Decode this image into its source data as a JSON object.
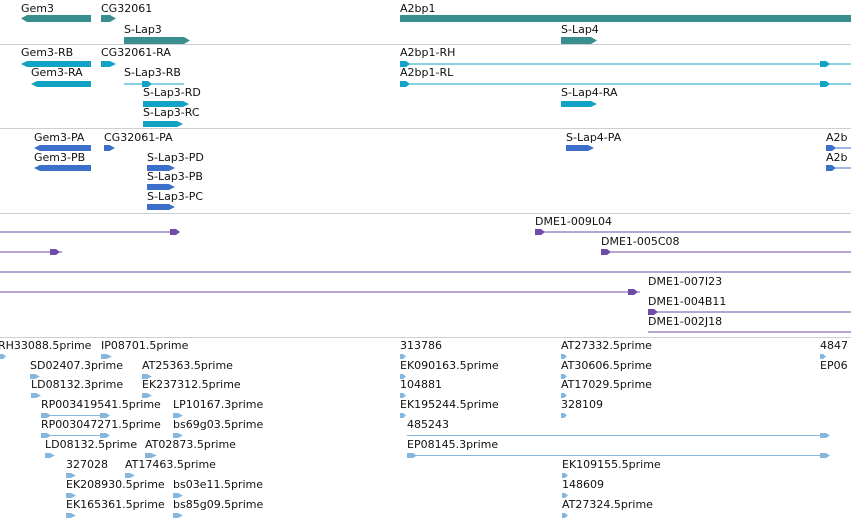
{
  "colors": {
    "gene": "#3b8e8e",
    "transcript": "#12a3c4",
    "protein": "#3b6fc9",
    "clone": "#6e4da8",
    "est": "#86b6dc",
    "divider": "#cfcfcf"
  },
  "tracks": {
    "genes": {
      "labels": {
        "gem3": "Gem3",
        "cg32061": "CG32061",
        "slap3": "S-Lap3",
        "a2bp1": "A2bp1",
        "slap4": "S-Lap4"
      }
    },
    "transcripts": {
      "labels": {
        "gem3_rb": "Gem3-RB",
        "gem3_ra": "Gem3-RA",
        "cg32061_ra": "CG32061-RA",
        "slap3_rb": "S-Lap3-RB",
        "slap3_rd": "S-Lap3-RD",
        "slap3_rc": "S-Lap3-RC",
        "a2bp1_rh": "A2bp1-RH",
        "a2bp1_rl": "A2bp1-RL",
        "slap4_ra": "S-Lap4-RA"
      }
    },
    "proteins": {
      "labels": {
        "gem3_pa": "Gem3-PA",
        "gem3_pb": "Gem3-PB",
        "cg32061_pa": "CG32061-PA",
        "slap3_pd": "S-Lap3-PD",
        "slap3_pb": "S-Lap3-PB",
        "slap3_pc": "S-Lap3-PC",
        "slap4_pa": "S-Lap4-PA",
        "a2b_1": "A2b",
        "a2b_2": "A2b"
      }
    },
    "clones": {
      "labels": {
        "dme1_009l04": "DME1-009L04",
        "dme1_005c08": "DME1-005C08",
        "dme1_007i23": "DME1-007I23",
        "dme1_004b11": "DME1-004B11",
        "dme1_002j18": "DME1-002J18"
      }
    },
    "ests": {
      "labels": {
        "rh33088": "RH33088.5prime",
        "ip08701": "IP08701.5prime",
        "sd02407": "SD02407.3prime",
        "at25363": "AT25363.5prime",
        "ld08132_3": "LD08132.3prime",
        "ek237312": "EK237312.5prime",
        "rp003419541": "RP003419541.5prime",
        "lp10167": "LP10167.3prime",
        "rp003047271": "RP003047271.5prime",
        "bs69g03": "bs69g03.5prime",
        "ld08132_5": "LD08132.5prime",
        "at02873": "AT02873.5prime",
        "n327028": "327028",
        "at17463": "AT17463.5prime",
        "ek208930": "EK208930.5prime",
        "bs03e11": "bs03e11.5prime",
        "ek165361": "EK165361.5prime",
        "bs85g09": "bs85g09.5prime",
        "n313786": "313786",
        "ek090163": "EK090163.5prime",
        "n104881": "104881",
        "ek195244": "EK195244.5prime",
        "n485243": "485243",
        "ep08145": "EP08145.3prime",
        "at27332": "AT27332.5prime",
        "at30606": "AT30606.5prime",
        "at17029": "AT17029.5prime",
        "n328109": "328109",
        "ek109155": "EK109155.5prime",
        "n148609": "148609",
        "at27324": "AT27324.5prime",
        "n4847": "4847",
        "ep06": "EP06"
      }
    }
  }
}
